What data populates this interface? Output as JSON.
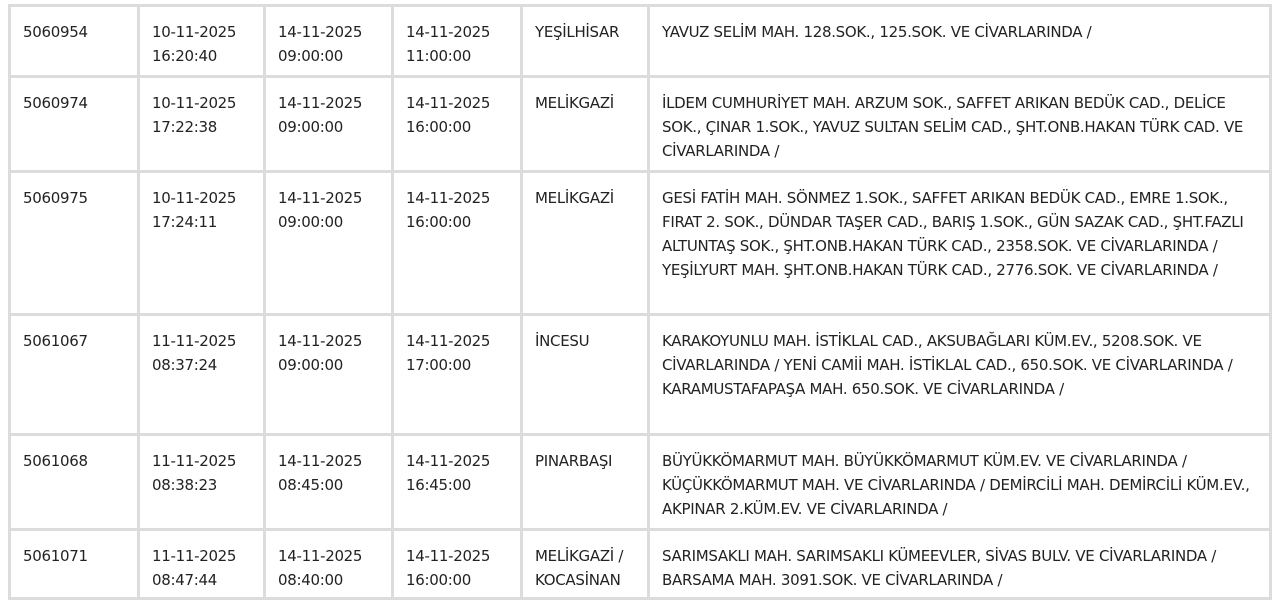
{
  "rows": [
    {
      "id": "5060954",
      "created_date": "10-11-2025",
      "created_time": "16:20:40",
      "start_date": "14-11-2025",
      "start_time": "09:00:00",
      "end_date": "14-11-2025",
      "end_time": "11:00:00",
      "district": "YEŞİLHİSAR",
      "locations": "YAVUZ SELİM MAH. 128.SOK., 125.SOK. VE CİVARLARINDA /"
    },
    {
      "id": "5060974",
      "created_date": "10-11-2025",
      "created_time": "17:22:38",
      "start_date": "14-11-2025",
      "start_time": "09:00:00",
      "end_date": "14-11-2025",
      "end_time": "16:00:00",
      "district": "MELİKGAZİ",
      "locations": "İLDEM CUMHURİYET MAH. ARZUM SOK., SAFFET ARIKAN BEDÜK CAD., DELİCE SOK., ÇINAR 1.SOK., YAVUZ SULTAN SELİM CAD., ŞHT.ONB.HAKAN TÜRK CAD. VE CİVARLARINDA /"
    },
    {
      "id": "5060975",
      "created_date": "10-11-2025",
      "created_time": "17:24:11",
      "start_date": "14-11-2025",
      "start_time": "09:00:00",
      "end_date": "14-11-2025",
      "end_time": "16:00:00",
      "district": "MELİKGAZİ",
      "locations": "GESİ FATİH MAH. SÖNMEZ 1.SOK., SAFFET ARIKAN BEDÜK CAD., EMRE 1.SOK., FIRAT 2. SOK., DÜNDAR TAŞER CAD., BARIŞ 1.SOK., GÜN SAZAK CAD., ŞHT.FAZLI ALTUNTAŞ SOK., ŞHT.ONB.HAKAN TÜRK CAD., 2358.SOK. VE CİVARLARINDA / YEŞİLYURT MAH. ŞHT.ONB.HAKAN TÜRK CAD., 2776.SOK. VE CİVARLARINDA /"
    },
    {
      "id": "5061067",
      "created_date": "11-11-2025",
      "created_time": "08:37:24",
      "start_date": "14-11-2025",
      "start_time": "09:00:00",
      "end_date": "14-11-2025",
      "end_time": "17:00:00",
      "district": "İNCESU",
      "locations": "KARAKOYUNLU MAH. İSTİKLAL CAD., AKSUBAĞLARI KÜM.EV., 5208.SOK. VE CİVARLARINDA / YENİ CAMİİ MAH. İSTİKLAL CAD., 650.SOK. VE CİVARLARINDA / KARAMUSTAFAPAŞA MAH. 650.SOK. VE CİVARLARINDA /"
    },
    {
      "id": "5061068",
      "created_date": "11-11-2025",
      "created_time": "08:38:23",
      "start_date": "14-11-2025",
      "start_time": "08:45:00",
      "end_date": "14-11-2025",
      "end_time": "16:45:00",
      "district": "PINARBAŞI",
      "locations": "BÜYÜKKÖMARMUT MAH. BÜYÜKKÖMARMUT KÜM.EV. VE CİVARLARINDA / KÜÇÜKKÖMARMUT MAH. VE CİVARLARINDA / DEMİRCİLİ MAH. DEMİRCİLİ KÜM.EV., AKPINAR 2.KÜM.EV. VE CİVARLARINDA /"
    },
    {
      "id": "5061071",
      "created_date": "11-11-2025",
      "created_time": "08:47:44",
      "start_date": "14-11-2025",
      "start_time": "08:40:00",
      "end_date": "14-11-2025",
      "end_time": "16:00:00",
      "district": "MELİKGAZİ / KOCASİNAN",
      "locations": "SARIMSAKLI MAH. SARIMSAKLI KÜMEEVLER, SİVAS BULV. VE CİVARLARINDA / BARSAMA MAH. 3091.SOK. VE CİVARLARINDA /"
    }
  ]
}
